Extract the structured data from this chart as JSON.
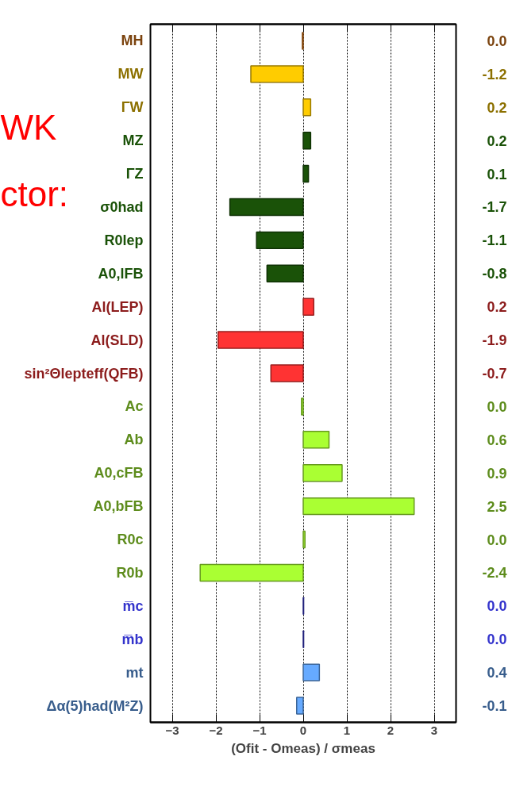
{
  "chart_data": {
    "type": "bar",
    "orientation": "horizontal",
    "xlabel": "(Ofit - Omeas) / σmeas",
    "categories": [
      "MH",
      "MW",
      "ΓW",
      "MZ",
      "ΓZ",
      "σ0had",
      "R0lep",
      "A0,lFB",
      "Al(LEP)",
      "Al(SLD)",
      "sin²Θlepteff(QFB)",
      "Ac",
      "Ab",
      "A0,cFB",
      "A0,bFB",
      "R0c",
      "R0b",
      "m̅c",
      "m̅b",
      "mt",
      "Δα(5)had(M²Z)"
    ],
    "values": [
      -0.02,
      -1.2,
      0.17,
      0.17,
      0.12,
      -1.68,
      -1.07,
      -0.83,
      0.24,
      -1.95,
      -0.74,
      -0.04,
      0.59,
      0.89,
      2.54,
      0.04,
      -2.36,
      0.01,
      0.01,
      0.37,
      -0.15
    ],
    "value_labels": [
      "0.0",
      "-1.2",
      "0.2",
      "0.2",
      "0.1",
      "-1.7",
      "-1.1",
      "-0.8",
      "0.2",
      "-1.9",
      "-0.7",
      "0.0",
      "0.6",
      "0.9",
      "2.5",
      "0.0",
      "-2.4",
      "0.0",
      "0.0",
      "0.4",
      "-0.1"
    ],
    "colors": [
      "#e07a1a",
      "#ffcc00",
      "#ffcc00",
      "#1a5208",
      "#1a5208",
      "#1a5208",
      "#1a5208",
      "#1a5208",
      "#ff3333",
      "#ff3333",
      "#ff3333",
      "#aaff33",
      "#aaff33",
      "#aaff33",
      "#aaff33",
      "#aaff33",
      "#aaff33",
      "#3333cc",
      "#3333cc",
      "#66aaff",
      "#66aaff"
    ],
    "xlim": [
      -3.5,
      3.5
    ],
    "xticks": [
      -3,
      -2,
      -1,
      0,
      1,
      2,
      3
    ],
    "grid": "x",
    "annotations": [
      "WK",
      "ctor:"
    ]
  }
}
